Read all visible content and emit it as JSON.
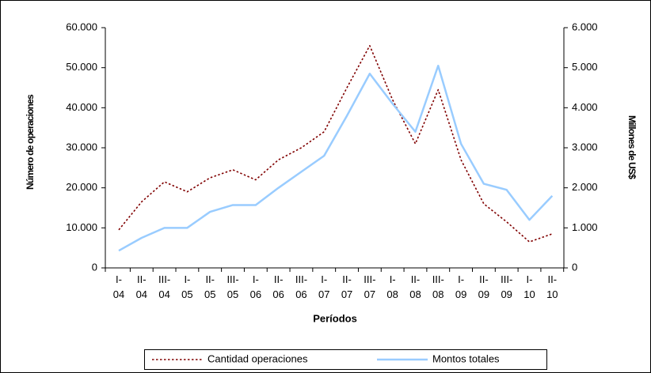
{
  "chart_data": {
    "type": "line",
    "x_label": "Períodos",
    "y_label": "Número de operaciones",
    "y2_label": "Millones de US$",
    "categories": [
      "I-04",
      "II-04",
      "III-04",
      "I-05",
      "II-05",
      "III-05",
      "I-06",
      "II-06",
      "III-06",
      "I-07",
      "II-07",
      "III-07",
      "I-08",
      "II-08",
      "III-08",
      "I-09",
      "II-09",
      "III-09",
      "I-10",
      "II-10"
    ],
    "series": [
      {
        "name": "Cantidad operaciones",
        "color": "#800000",
        "axis": "y",
        "values": [
          9500,
          16500,
          21500,
          19000,
          22500,
          24500,
          22000,
          27000,
          30000,
          34000,
          45000,
          55500,
          42000,
          31000,
          44500,
          27000,
          16000,
          11500,
          6500,
          8500
        ]
      },
      {
        "name": "Montos totales",
        "color": "#99ccff",
        "axis": "y2",
        "values": [
          430,
          750,
          1000,
          1000,
          1400,
          1570,
          1570,
          2000,
          2400,
          2800,
          3800,
          4850,
          4100,
          3400,
          5050,
          3100,
          2100,
          1950,
          1200,
          1800
        ]
      }
    ],
    "ylim": [
      0,
      60000
    ],
    "yticks": [
      0,
      {
        "value": 10000,
        "label": "10.000"
      },
      {
        "value": 20000,
        "label": "20.000"
      },
      {
        "value": 30000,
        "label": "30.000"
      },
      {
        "value": 40000,
        "label": "40.000"
      },
      {
        "value": 50000,
        "label": "50.000"
      },
      {
        "value": 60000,
        "label": "60.000"
      }
    ],
    "y2lim": [
      0,
      6000
    ],
    "y2ticks": [
      0,
      {
        "value": 1000,
        "label": "1.000"
      },
      {
        "value": 2000,
        "label": "2.000"
      },
      {
        "value": 3000,
        "label": "3.000"
      },
      {
        "value": 4000,
        "label": "4.000"
      },
      {
        "value": 5000,
        "label": "5.000"
      },
      {
        "value": 6000,
        "label": "6.000"
      }
    ],
    "grid": false,
    "legend": "bottom"
  }
}
